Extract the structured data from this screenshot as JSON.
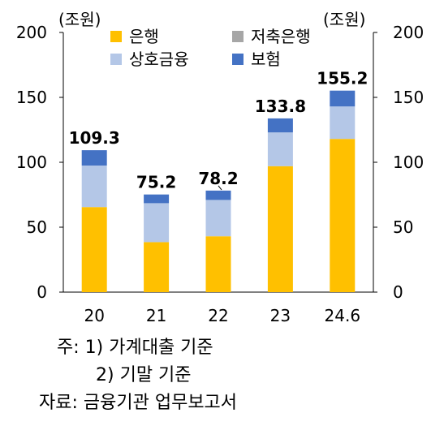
{
  "chart_data": {
    "type": "bar",
    "stacked": true,
    "categories": [
      "20",
      "21",
      "22",
      "23",
      "24.6"
    ],
    "series": [
      {
        "name": "은행",
        "color": "#FFC000",
        "values": [
          65.5,
          38.5,
          43.0,
          97.0,
          118.0
        ]
      },
      {
        "name": "저축은행",
        "color": "#A6A6A6",
        "values": [
          0,
          0,
          0,
          0,
          0
        ]
      },
      {
        "name": "상호금융",
        "color": "#B4C7E7",
        "values": [
          32.0,
          30.0,
          28.0,
          26.0,
          25.0
        ]
      },
      {
        "name": "보험",
        "color": "#4472C4",
        "values": [
          11.8,
          6.7,
          7.2,
          10.8,
          12.2
        ]
      }
    ],
    "totals": [
      "109.3",
      "75.2",
      "78.2",
      "133.8",
      "155.2"
    ],
    "ylim": [
      0,
      200
    ],
    "yticks": [
      0,
      50,
      100,
      150,
      200
    ],
    "yunit_left": "(조원)",
    "yunit_right": "(조원)",
    "legend_position": "top"
  },
  "notes": {
    "line1": "주:  1) 가계대출 기준",
    "line2": "2) 기말 기준",
    "source": "자료: 금융기관 업무보고서"
  }
}
